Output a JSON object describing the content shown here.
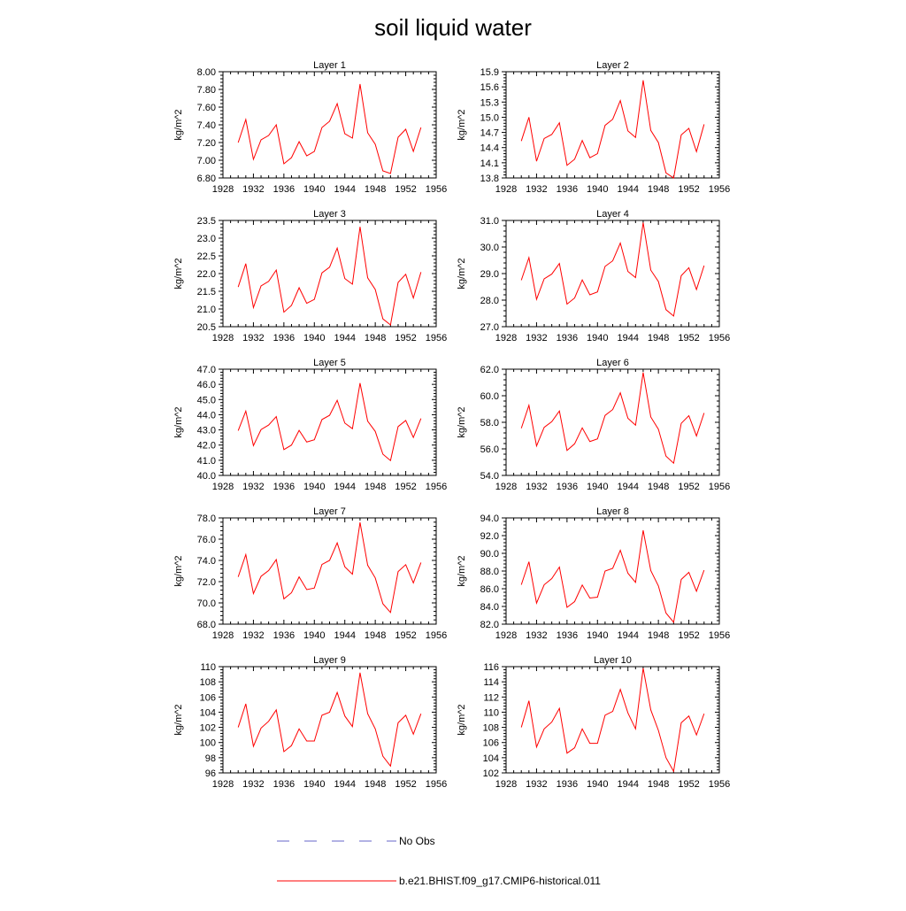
{
  "figure_title": "soil liquid water",
  "colors": {
    "model": "#ff0000",
    "obs": "#6464c8",
    "frame": "#000000"
  },
  "legend": [
    {
      "label": "No Obs",
      "style": "dashed",
      "color": "#6464c8"
    },
    {
      "label": "b.e21.BHIST.f09_g17.CMIP6-historical.011",
      "style": "solid",
      "color": "#ff0000"
    }
  ],
  "chart_data": [
    {
      "type": "line",
      "title": "Layer 1",
      "ylabel": "kg/m^2",
      "xlim": [
        1928,
        1956
      ],
      "ylim": [
        6.8,
        8.0
      ],
      "x_ticks": [
        1928,
        1932,
        1936,
        1940,
        1944,
        1948,
        1952,
        1956
      ],
      "y_ticks": [
        "6.80",
        "7.00",
        "7.20",
        "7.40",
        "7.60",
        "7.80",
        "8.00"
      ],
      "x": [
        1930,
        1931,
        1932,
        1933,
        1934,
        1935,
        1936,
        1937,
        1938,
        1939,
        1940,
        1941,
        1942,
        1943,
        1944,
        1945,
        1946,
        1947,
        1948,
        1949,
        1950,
        1951,
        1952,
        1953,
        1954
      ],
      "series": [
        {
          "name": "b.e21.BHIST.f09_g17.CMIP6-historical.011",
          "values": [
            7.2,
            7.46,
            7.01,
            7.23,
            7.28,
            7.4,
            6.96,
            7.03,
            7.21,
            7.05,
            7.1,
            7.37,
            7.44,
            7.64,
            7.3,
            7.25,
            7.86,
            7.31,
            7.18,
            6.88,
            6.85,
            7.26,
            7.35,
            7.1,
            7.37
          ]
        }
      ]
    },
    {
      "type": "line",
      "title": "Layer 2",
      "ylabel": "kg/m^2",
      "xlim": [
        1928,
        1956
      ],
      "ylim": [
        13.8,
        15.9
      ],
      "x_ticks": [
        1928,
        1932,
        1936,
        1940,
        1944,
        1948,
        1952,
        1956
      ],
      "y_ticks": [
        "13.8",
        "14.1",
        "14.4",
        "14.7",
        "15.0",
        "15.3",
        "15.6",
        "15.9"
      ],
      "x": [
        1930,
        1931,
        1932,
        1933,
        1934,
        1935,
        1936,
        1937,
        1938,
        1939,
        1940,
        1941,
        1942,
        1943,
        1944,
        1945,
        1946,
        1947,
        1948,
        1949,
        1950,
        1951,
        1952,
        1953,
        1954
      ],
      "series": [
        {
          "name": "b.e21.BHIST.f09_g17.CMIP6-historical.011",
          "values": [
            14.53,
            15.0,
            14.13,
            14.58,
            14.66,
            14.89,
            14.05,
            14.17,
            14.54,
            14.2,
            14.28,
            14.84,
            14.96,
            15.33,
            14.73,
            14.6,
            15.73,
            14.74,
            14.5,
            13.9,
            13.8,
            14.65,
            14.78,
            14.32,
            14.86
          ]
        }
      ]
    },
    {
      "type": "line",
      "title": "Layer 3",
      "ylabel": "kg/m^2",
      "xlim": [
        1928,
        1956
      ],
      "ylim": [
        20.5,
        23.5
      ],
      "x_ticks": [
        1928,
        1932,
        1936,
        1940,
        1944,
        1948,
        1952,
        1956
      ],
      "y_ticks": [
        "20.5",
        "21.0",
        "21.5",
        "22.0",
        "22.5",
        "23.0",
        "23.5"
      ],
      "x": [
        1930,
        1931,
        1932,
        1933,
        1934,
        1935,
        1936,
        1937,
        1938,
        1939,
        1940,
        1941,
        1942,
        1943,
        1944,
        1945,
        1946,
        1947,
        1948,
        1949,
        1950,
        1951,
        1952,
        1953,
        1954
      ],
      "series": [
        {
          "name": "b.e21.BHIST.f09_g17.CMIP6-historical.011",
          "values": [
            21.62,
            22.28,
            21.04,
            21.65,
            21.78,
            22.1,
            20.91,
            21.1,
            21.6,
            21.16,
            21.27,
            22.02,
            22.18,
            22.72,
            21.86,
            21.7,
            23.32,
            21.88,
            21.55,
            20.72,
            20.55,
            21.75,
            21.98,
            21.31,
            22.04
          ]
        }
      ]
    },
    {
      "type": "line",
      "title": "Layer 4",
      "ylabel": "kg/m^2",
      "xlim": [
        1928,
        1956
      ],
      "ylim": [
        27.0,
        31.0
      ],
      "x_ticks": [
        1928,
        1932,
        1936,
        1940,
        1944,
        1948,
        1952,
        1956
      ],
      "y_ticks": [
        "27.0",
        "28.0",
        "29.0",
        "30.0",
        "31.0"
      ],
      "x": [
        1930,
        1931,
        1932,
        1933,
        1934,
        1935,
        1936,
        1937,
        1938,
        1939,
        1940,
        1941,
        1942,
        1943,
        1944,
        1945,
        1946,
        1947,
        1948,
        1949,
        1950,
        1951,
        1952,
        1953,
        1954
      ],
      "series": [
        {
          "name": "b.e21.BHIST.f09_g17.CMIP6-historical.011",
          "values": [
            28.75,
            29.6,
            28.03,
            28.8,
            28.98,
            29.38,
            27.85,
            28.08,
            28.76,
            28.2,
            28.31,
            29.27,
            29.48,
            30.15,
            29.08,
            28.85,
            30.92,
            29.13,
            28.7,
            27.64,
            27.4,
            28.92,
            29.22,
            28.4,
            29.3
          ]
        }
      ]
    },
    {
      "type": "line",
      "title": "Layer 5",
      "ylabel": "kg/m^2",
      "xlim": [
        1928,
        1956
      ],
      "ylim": [
        40.0,
        47.0
      ],
      "x_ticks": [
        1928,
        1932,
        1936,
        1940,
        1944,
        1948,
        1952,
        1956
      ],
      "y_ticks": [
        "40.0",
        "41.0",
        "42.0",
        "43.0",
        "44.0",
        "45.0",
        "46.0",
        "47.0"
      ],
      "x": [
        1930,
        1931,
        1932,
        1933,
        1934,
        1935,
        1936,
        1937,
        1938,
        1939,
        1940,
        1941,
        1942,
        1943,
        1944,
        1945,
        1946,
        1947,
        1948,
        1949,
        1950,
        1951,
        1952,
        1953,
        1954
      ],
      "series": [
        {
          "name": "b.e21.BHIST.f09_g17.CMIP6-historical.011",
          "values": [
            42.95,
            44.24,
            41.96,
            43.02,
            43.32,
            43.88,
            41.7,
            42.0,
            42.97,
            42.2,
            42.35,
            43.68,
            43.96,
            44.95,
            43.45,
            43.08,
            46.08,
            43.58,
            42.9,
            41.4,
            40.98,
            43.22,
            43.62,
            42.5,
            43.75
          ]
        }
      ]
    },
    {
      "type": "line",
      "title": "Layer 6",
      "ylabel": "kg/m^2",
      "xlim": [
        1928,
        1956
      ],
      "ylim": [
        54.0,
        62.0
      ],
      "x_ticks": [
        1928,
        1932,
        1936,
        1940,
        1944,
        1948,
        1952,
        1956
      ],
      "y_ticks": [
        "54.0",
        "56.0",
        "58.0",
        "60.0",
        "62.0"
      ],
      "x": [
        1930,
        1931,
        1932,
        1933,
        1934,
        1935,
        1936,
        1937,
        1938,
        1939,
        1940,
        1941,
        1942,
        1943,
        1944,
        1945,
        1946,
        1947,
        1948,
        1949,
        1950,
        1951,
        1952,
        1953,
        1954
      ],
      "series": [
        {
          "name": "b.e21.BHIST.f09_g17.CMIP6-historical.011",
          "values": [
            57.55,
            59.28,
            56.22,
            57.62,
            58.05,
            58.85,
            55.88,
            56.38,
            57.58,
            56.55,
            56.75,
            58.52,
            58.96,
            60.22,
            58.3,
            57.78,
            61.75,
            58.4,
            57.48,
            55.45,
            54.92,
            57.92,
            58.5,
            56.97,
            58.7
          ]
        }
      ]
    },
    {
      "type": "line",
      "title": "Layer 7",
      "ylabel": "kg/m^2",
      "xlim": [
        1928,
        1956
      ],
      "ylim": [
        68.0,
        78.0
      ],
      "x_ticks": [
        1928,
        1932,
        1936,
        1940,
        1944,
        1948,
        1952,
        1956
      ],
      "y_ticks": [
        "68.0",
        "70.0",
        "72.0",
        "74.0",
        "76.0",
        "78.0"
      ],
      "x": [
        1930,
        1931,
        1932,
        1933,
        1934,
        1935,
        1936,
        1937,
        1938,
        1939,
        1940,
        1941,
        1942,
        1943,
        1944,
        1945,
        1946,
        1947,
        1948,
        1949,
        1950,
        1951,
        1952,
        1953,
        1954
      ],
      "series": [
        {
          "name": "b.e21.BHIST.f09_g17.CMIP6-historical.011",
          "values": [
            72.45,
            74.55,
            70.88,
            72.5,
            73.05,
            74.08,
            70.38,
            70.96,
            72.45,
            71.25,
            71.4,
            73.62,
            74.0,
            75.65,
            73.4,
            72.7,
            77.58,
            73.55,
            72.35,
            69.92,
            69.1,
            72.95,
            73.6,
            71.88,
            73.8
          ]
        }
      ]
    },
    {
      "type": "line",
      "title": "Layer 8",
      "ylabel": "kg/m^2",
      "xlim": [
        1928,
        1956
      ],
      "ylim": [
        82.0,
        94.0
      ],
      "x_ticks": [
        1928,
        1932,
        1936,
        1940,
        1944,
        1948,
        1952,
        1956
      ],
      "y_ticks": [
        "82.0",
        "84.0",
        "86.0",
        "88.0",
        "90.0",
        "92.0",
        "94.0"
      ],
      "x": [
        1930,
        1931,
        1932,
        1933,
        1934,
        1935,
        1936,
        1937,
        1938,
        1939,
        1940,
        1941,
        1942,
        1943,
        1944,
        1945,
        1946,
        1947,
        1948,
        1949,
        1950,
        1951,
        1952,
        1953,
        1954
      ],
      "series": [
        {
          "name": "b.e21.BHIST.f09_g17.CMIP6-historical.011",
          "values": [
            86.45,
            89.05,
            84.38,
            86.45,
            87.15,
            88.45,
            83.9,
            84.55,
            86.42,
            84.95,
            85.05,
            88.0,
            88.3,
            90.35,
            87.75,
            86.72,
            92.6,
            88.05,
            86.32,
            83.25,
            82.22,
            87.05,
            87.85,
            85.72,
            88.1
          ]
        }
      ]
    },
    {
      "type": "line",
      "title": "Layer 9",
      "ylabel": "kg/m^2",
      "xlim": [
        1928,
        1956
      ],
      "ylim": [
        96,
        110
      ],
      "x_ticks": [
        1928,
        1932,
        1936,
        1940,
        1944,
        1948,
        1952,
        1956
      ],
      "y_ticks": [
        "96",
        "98",
        "100",
        "102",
        "104",
        "106",
        "108",
        "110"
      ],
      "x": [
        1930,
        1931,
        1932,
        1933,
        1934,
        1935,
        1936,
        1937,
        1938,
        1939,
        1940,
        1941,
        1942,
        1943,
        1944,
        1945,
        1946,
        1947,
        1948,
        1949,
        1950,
        1951,
        1952,
        1953,
        1954
      ],
      "series": [
        {
          "name": "b.e21.BHIST.f09_g17.CMIP6-historical.011",
          "values": [
            102.0,
            105.1,
            99.5,
            101.9,
            102.8,
            104.3,
            98.8,
            99.6,
            101.8,
            100.2,
            100.2,
            103.6,
            104.0,
            106.6,
            103.5,
            102.1,
            109.2,
            103.8,
            101.8,
            98.2,
            96.9,
            102.6,
            103.6,
            101.1,
            103.8
          ]
        }
      ]
    },
    {
      "type": "line",
      "title": "Layer 10",
      "ylabel": "kg/m^2",
      "xlim": [
        1928,
        1956
      ],
      "ylim": [
        102,
        116
      ],
      "x_ticks": [
        1928,
        1932,
        1936,
        1940,
        1944,
        1948,
        1952,
        1956
      ],
      "y_ticks": [
        "102",
        "104",
        "106",
        "108",
        "110",
        "112",
        "114",
        "116"
      ],
      "x": [
        1930,
        1931,
        1932,
        1933,
        1934,
        1935,
        1936,
        1937,
        1938,
        1939,
        1940,
        1941,
        1942,
        1943,
        1944,
        1945,
        1946,
        1947,
        1948,
        1949,
        1950,
        1951,
        1952,
        1953,
        1954
      ],
      "series": [
        {
          "name": "b.e21.BHIST.f09_g17.CMIP6-historical.011",
          "values": [
            108.0,
            111.5,
            105.4,
            107.8,
            108.7,
            110.5,
            104.6,
            105.3,
            107.8,
            105.9,
            105.9,
            109.6,
            110.1,
            113.0,
            109.9,
            107.8,
            115.8,
            110.3,
            107.6,
            104.0,
            102.2,
            108.6,
            109.5,
            107.0,
            109.8
          ]
        }
      ]
    }
  ]
}
